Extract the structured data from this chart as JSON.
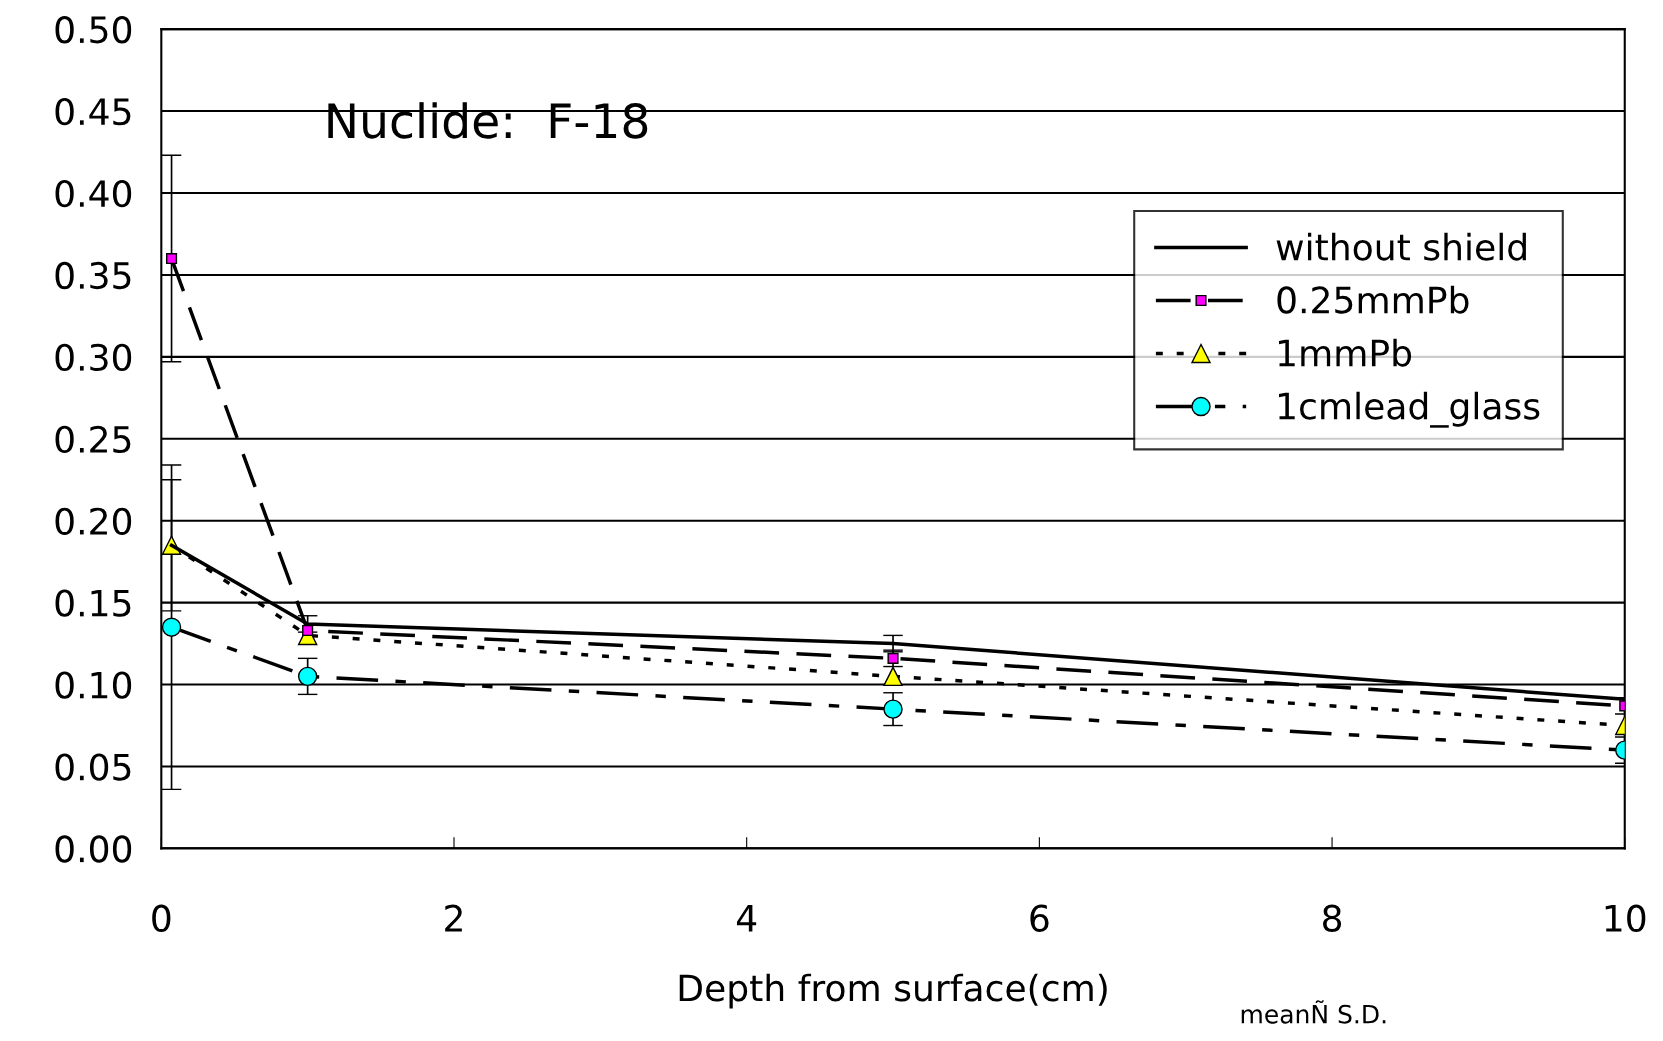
{
  "chart_data": {
    "type": "line",
    "xlabel": "Depth from surface(cm)",
    "xlim": [
      0,
      10
    ],
    "xticks": [
      0,
      2,
      4,
      6,
      8,
      10
    ],
    "ylim": [
      0,
      0.5
    ],
    "yticks": [
      {
        "value": 0,
        "label": "0.00"
      },
      {
        "value": 0.05,
        "label": "0.05"
      },
      {
        "value": 0.1,
        "label": "0.10"
      },
      {
        "value": 0.15,
        "label": "0.15"
      },
      {
        "value": 0.2,
        "label": "0.20"
      },
      {
        "value": 0.25,
        "label": "0.25"
      },
      {
        "value": 0.3,
        "label": "0.30"
      },
      {
        "value": 0.35,
        "label": "0.35"
      },
      {
        "value": 0.4,
        "label": "0.40"
      },
      {
        "value": 0.45,
        "label": "0.45"
      },
      {
        "value": 0.5,
        "label": "0.50"
      }
    ],
    "grid": "y",
    "legend": "top right",
    "x": [
      0.07,
      1,
      5,
      10
    ],
    "series": [
      {
        "name": "without shield",
        "color": "#000000",
        "values": [
          0.185,
          0.137,
          0.125,
          0.091
        ],
        "errors": [
          0.04,
          0.005,
          0.005,
          null
        ],
        "marker": "none",
        "line_style": "solid"
      },
      {
        "name": "0.25mmPb",
        "color": "#ff00ff",
        "values": [
          0.36,
          0.133,
          0.116,
          0.087
        ],
        "errors": [
          0.063,
          null,
          0.005,
          0.005
        ],
        "marker": "square",
        "line_style": "dashed"
      },
      {
        "name": "1mmPb",
        "color": "#ffff00",
        "values": [
          0.185,
          0.13,
          0.105,
          0.075
        ],
        "errors": [
          null,
          null,
          null,
          null
        ],
        "marker": "triangle",
        "line_style": "dotted"
      },
      {
        "name": "1cmlead_glass",
        "color": "#00ffff",
        "values": [
          0.135,
          0.105,
          0.085,
          0.06
        ],
        "errors": [
          0.099,
          0.011,
          0.01,
          0.008
        ],
        "marker": "circle",
        "line_style": "dashdot"
      }
    ],
    "annotations": [
      "Nuclide:  F-18",
      "meanÑ S.D."
    ]
  }
}
